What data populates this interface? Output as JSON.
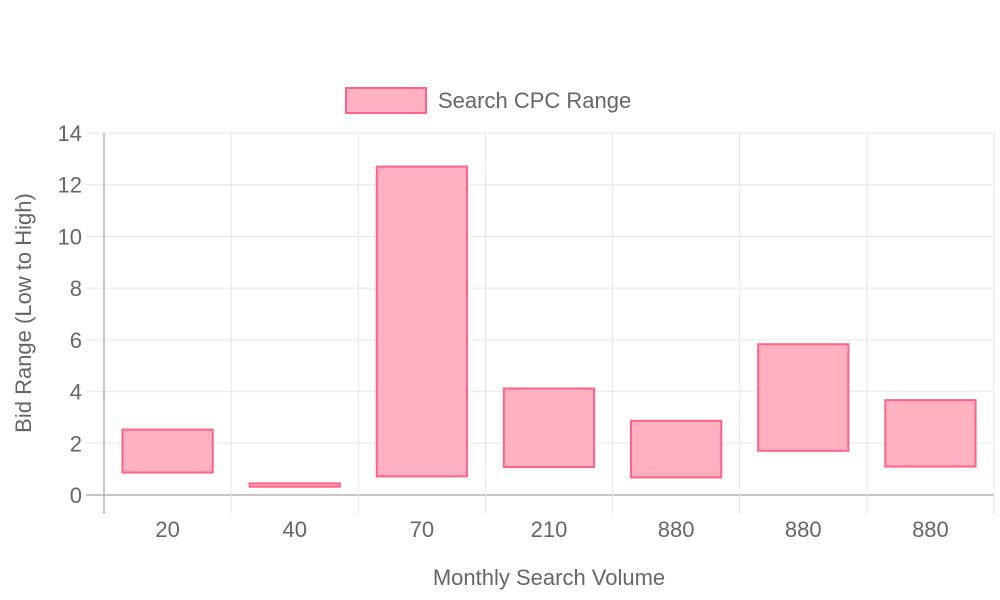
{
  "chart_data": {
    "type": "bar",
    "categories": [
      "20",
      "40",
      "70",
      "210",
      "880",
      "880",
      "880"
    ],
    "series": [
      {
        "name": "Search CPC Range",
        "ranges": [
          [
            0.87,
            2.53
          ],
          [
            0.32,
            0.45
          ],
          [
            0.72,
            12.7
          ],
          [
            1.08,
            4.12
          ],
          [
            0.68,
            2.87
          ],
          [
            1.71,
            5.83
          ],
          [
            1.1,
            3.67
          ]
        ]
      }
    ],
    "xlabel": "Monthly Search Volume",
    "ylabel": "Bid Range (Low to High)",
    "yticks": [
      "0",
      "2",
      "4",
      "6",
      "8",
      "10",
      "12",
      "14"
    ],
    "ylim": [
      0,
      14
    ],
    "grid": true,
    "legend_position": "top",
    "colors": {
      "bar_fill": "#ffb1c1",
      "bar_stroke": "#ff6384",
      "grid": "#e5e5e5",
      "axis": "#c8c8c8",
      "text": "#666666"
    }
  }
}
